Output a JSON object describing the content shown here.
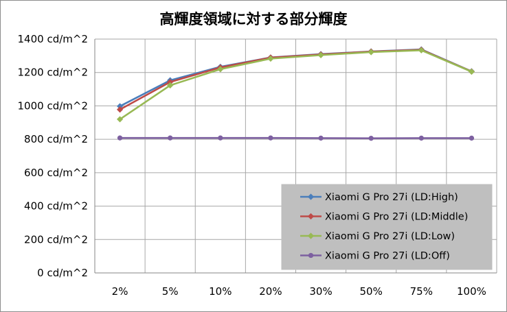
{
  "chart_data": {
    "type": "line",
    "title": "高輝度領域に対する部分輝度",
    "xlabel": "",
    "ylabel": "",
    "categories": [
      "2%",
      "5%",
      "10%",
      "20%",
      "30%",
      "50%",
      "75%",
      "100%"
    ],
    "ylim": [
      0,
      1400
    ],
    "y_ticks": [
      0,
      200,
      400,
      600,
      800,
      1000,
      1200,
      1400
    ],
    "y_tick_labels": [
      "0 cd/m^2",
      "200 cd/m^2",
      "400 cd/m^2",
      "600 cd/m^2",
      "800 cd/m^2",
      "1000 cd/m^2",
      "1200 cd/m^2",
      "1400 cd/m^2"
    ],
    "grid": true,
    "legend_position": "bottom-right",
    "series": [
      {
        "name": "Xiaomi G Pro 27i (LD:High)",
        "color": "#4a7ebb",
        "marker": "diamond",
        "values": [
          998,
          1153,
          1234,
          1290,
          1310,
          1326,
          1338,
          1207
        ]
      },
      {
        "name": "Xiaomi G Pro 27i (LD:Middle)",
        "color": "#be4b48",
        "marker": "diamond",
        "values": [
          978,
          1143,
          1230,
          1289,
          1308,
          1325,
          1336,
          1206
        ]
      },
      {
        "name": "Xiaomi G Pro 27i (LD:Low)",
        "color": "#98b954",
        "marker": "diamond",
        "values": [
          920,
          1123,
          1220,
          1283,
          1304,
          1322,
          1333,
          1205
        ]
      },
      {
        "name": "Xiaomi G Pro 27i (LD:Off)",
        "color": "#7d60a0",
        "marker": "circle",
        "values": [
          808,
          808,
          808,
          808,
          807,
          806,
          807,
          807
        ]
      }
    ]
  }
}
